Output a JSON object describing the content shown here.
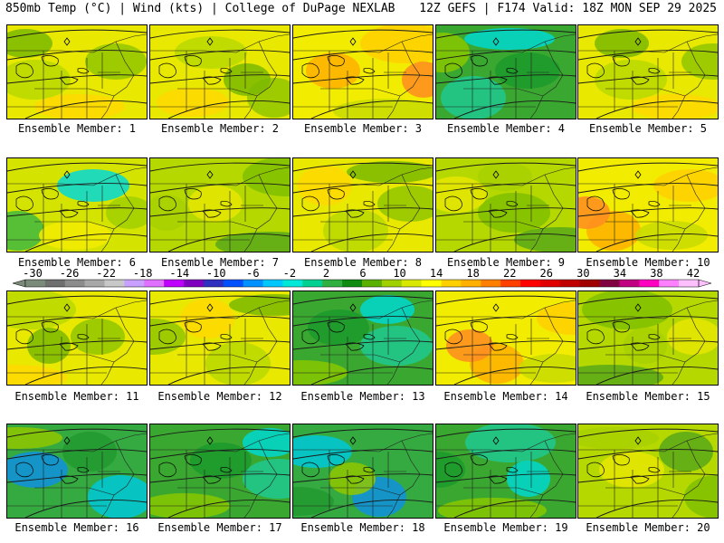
{
  "header": {
    "left_title": "850mb Temp (°C) | Wind (kts) | College of DuPage NEXLAB",
    "right_title": "12Z GEFS | F174 Valid: 18Z MON SEP 29 2025"
  },
  "panels": [
    {
      "label": "Ensemble Member: 1",
      "scheme": "warm"
    },
    {
      "label": "Ensemble Member: 2",
      "scheme": "warm"
    },
    {
      "label": "Ensemble Member: 3",
      "scheme": "hot"
    },
    {
      "label": "Ensemble Member: 4",
      "scheme": "cool"
    },
    {
      "label": "Ensemble Member: 5",
      "scheme": "warm"
    },
    {
      "label": "Ensemble Member: 6",
      "scheme": "warmcyan"
    },
    {
      "label": "Ensemble Member: 7",
      "scheme": "mild"
    },
    {
      "label": "Ensemble Member: 8",
      "scheme": "warm"
    },
    {
      "label": "Ensemble Member: 9",
      "scheme": "mild"
    },
    {
      "label": "Ensemble Member: 10",
      "scheme": "hot"
    },
    {
      "label": "Ensemble Member: 11",
      "scheme": "warm"
    },
    {
      "label": "Ensemble Member: 12",
      "scheme": "warm"
    },
    {
      "label": "Ensemble Member: 13",
      "scheme": "cool"
    },
    {
      "label": "Ensemble Member: 14",
      "scheme": "hot"
    },
    {
      "label": "Ensemble Member: 15",
      "scheme": "mild"
    },
    {
      "label": "Ensemble Member: 16",
      "scheme": "cold"
    },
    {
      "label": "Ensemble Member: 17",
      "scheme": "cool"
    },
    {
      "label": "Ensemble Member: 18",
      "scheme": "cold"
    },
    {
      "label": "Ensemble Member: 19",
      "scheme": "cool"
    },
    {
      "label": "Ensemble Member: 20",
      "scheme": "mild"
    }
  ],
  "colorbar": {
    "ticks": [
      "-30",
      "-26",
      "-22",
      "-18",
      "-14",
      "-10",
      "-6",
      "-2",
      "2",
      "6",
      "10",
      "14",
      "18",
      "22",
      "26",
      "30",
      "34",
      "38",
      "42"
    ],
    "colors": [
      "#7a8b7a",
      "#6f6f6f",
      "#8c8c8c",
      "#a8a8a8",
      "#c8c8c8",
      "#c8a0ff",
      "#e070ff",
      "#c000ff",
      "#8000c0",
      "#3030c0",
      "#0050ff",
      "#0090ff",
      "#00c8ff",
      "#00e8d8",
      "#00d090",
      "#30b040",
      "#108a10",
      "#5ab000",
      "#a0d000",
      "#d8e800",
      "#ffff00",
      "#ffd000",
      "#ffb000",
      "#ff8000",
      "#ff4000",
      "#ff0000",
      "#e00000",
      "#c00000",
      "#a00000",
      "#800040",
      "#c00080",
      "#ff00c0",
      "#ff80ff",
      "#ffc0ff"
    ]
  }
}
